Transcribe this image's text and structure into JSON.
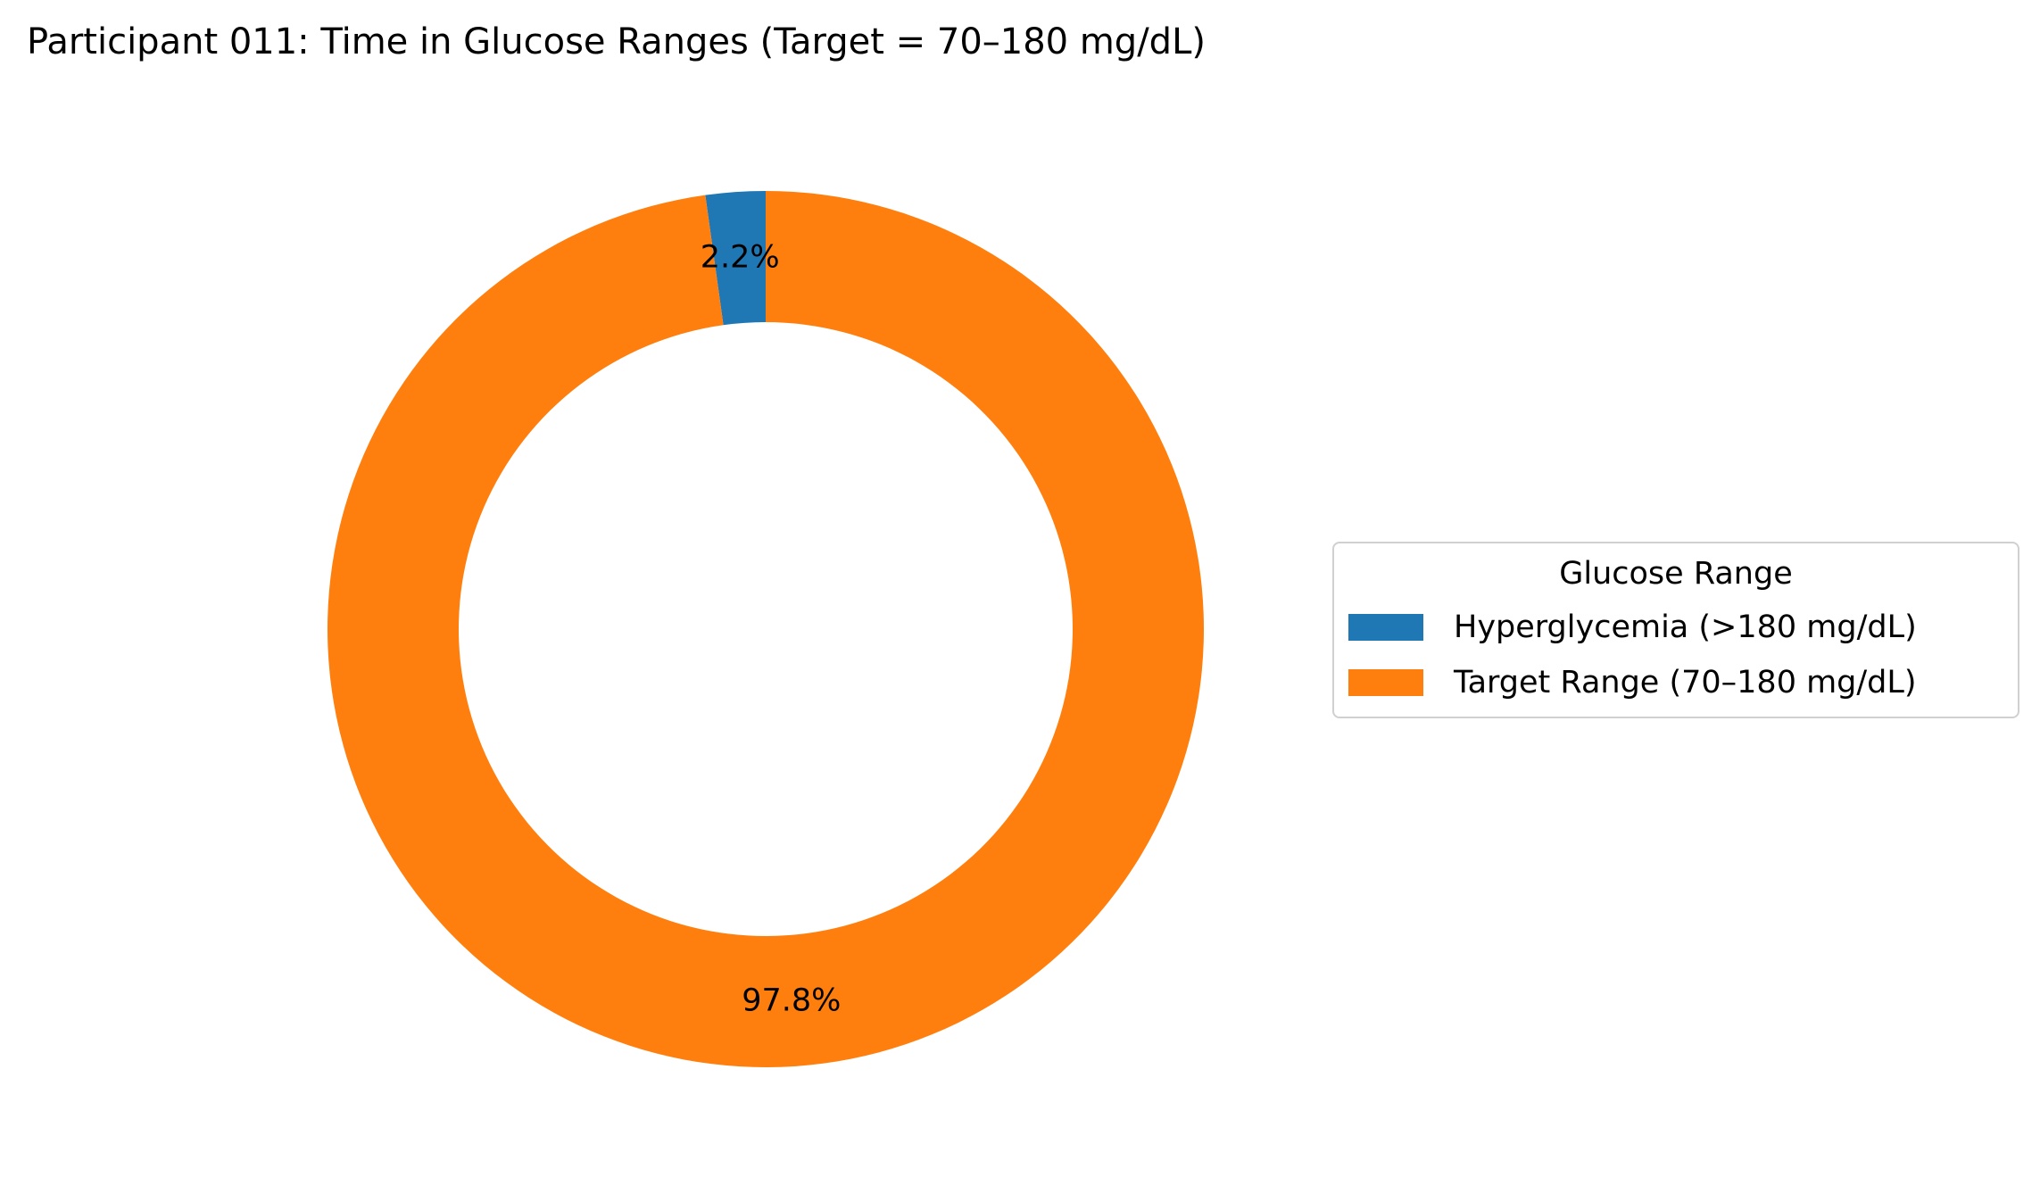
{
  "chart_data": {
    "type": "pie",
    "variant": "donut",
    "title": "Participant 011: Time in Glucose Ranges (Target = 70–180 mg/dL)",
    "legend": {
      "title": "Glucose Range",
      "placement": "center-right"
    },
    "slices": [
      {
        "name": "Hyperglycemia (>180 mg/dL)",
        "value": 2.2,
        "label": "2.2%",
        "color": "#1f77b4"
      },
      {
        "name": "Target Range (70–180 mg/dL)",
        "value": 97.8,
        "label": "97.8%",
        "color": "#ff7f0e"
      }
    ],
    "start_angle_deg": 90,
    "direction": "counterclockwise"
  }
}
